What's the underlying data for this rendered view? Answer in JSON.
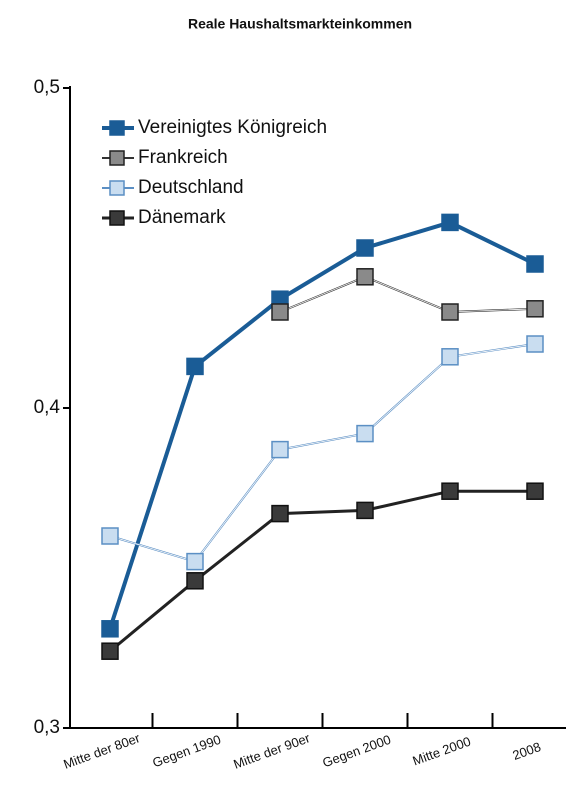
{
  "chart_data": {
    "type": "line",
    "title": "Reale Haushaltsmarkteinkommen",
    "categories": [
      "Mitte der 80er",
      "Gegen 1990",
      "Mitte der 90er",
      "Gegen 2000",
      "Mitte 2000",
      "2008"
    ],
    "series": [
      {
        "name": "Vereinigtes Königreich",
        "color": "#1a5c96",
        "values": [
          0.331,
          0.413,
          0.434,
          0.45,
          0.458,
          0.445
        ]
      },
      {
        "name": "Frankreich",
        "color": "#8a8a8a",
        "values": [
          null,
          null,
          0.43,
          0.441,
          0.43,
          0.431
        ]
      },
      {
        "name": "Deutschland",
        "color": "#c9ddf0",
        "values": [
          0.36,
          0.352,
          0.387,
          0.392,
          0.416,
          0.42
        ]
      },
      {
        "name": "Dänemark",
        "color": "#3a3a3a",
        "values": [
          0.324,
          0.346,
          0.367,
          0.368,
          0.374,
          0.374
        ]
      }
    ],
    "ylim": [
      0.3,
      0.5
    ],
    "yticks": [
      {
        "value": 0.3,
        "label": "0,3"
      },
      {
        "value": 0.4,
        "label": "0,4"
      },
      {
        "value": 0.5,
        "label": "0,5"
      }
    ],
    "legend": "upper left"
  }
}
